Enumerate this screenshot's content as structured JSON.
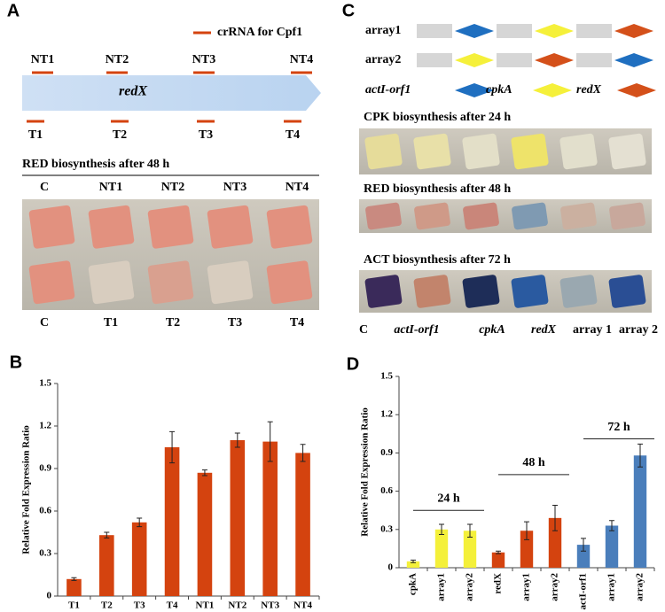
{
  "panel_a": {
    "label": "A",
    "legend": "crRNA for Cpf1",
    "nt_labels": [
      "NT1",
      "NT2",
      "NT3",
      "NT4"
    ],
    "gene": "redX",
    "t_labels": [
      "T1",
      "T2",
      "T3",
      "T4"
    ],
    "photo_title": "RED biosynthesis after 48 h",
    "top_labels": [
      "C",
      "NT1",
      "NT2",
      "NT3",
      "NT4"
    ],
    "bottom_labels": [
      "C",
      "T1",
      "T2",
      "T3",
      "T4"
    ]
  },
  "panel_c": {
    "label": "C",
    "arrays": [
      "array1",
      "array2"
    ],
    "legend": [
      "actI-orf1",
      "cpkA",
      "redX"
    ],
    "photo_titles": [
      "CPK biosynthesis after 24 h",
      "RED biosynthesis after 48 h",
      "ACT biosynthesis after 72 h"
    ],
    "bottom_labels": [
      "C",
      "actI-orf1",
      "cpkA",
      "redX",
      "array 1",
      "array 2"
    ]
  },
  "chart_data": [
    {
      "type": "bar",
      "panel_label": "B",
      "ylabel": "Relative Fold Expression Ratio",
      "categories": [
        "T1",
        "T2",
        "T3",
        "T4",
        "NT1",
        "NT2",
        "NT3",
        "NT4"
      ],
      "values": [
        0.12,
        0.43,
        0.52,
        1.05,
        0.87,
        1.1,
        1.09,
        1.01
      ],
      "errors": [
        0.01,
        0.02,
        0.03,
        0.11,
        0.02,
        0.05,
        0.14,
        0.06
      ],
      "colors": [
        "#d4430f",
        "#d4430f",
        "#d4430f",
        "#d4430f",
        "#d4430f",
        "#d4430f",
        "#d4430f",
        "#d4430f"
      ],
      "ylim": [
        0,
        1.5
      ],
      "yticks": [
        0,
        0.3,
        0.6,
        0.9,
        1.2,
        1.5
      ]
    },
    {
      "type": "bar",
      "panel_label": "D",
      "ylabel": "Relative Fold Expression Ratio",
      "categories": [
        "cpkA",
        "array1",
        "array2",
        "redX",
        "array1",
        "array2",
        "actI-orf1",
        "array1",
        "array2"
      ],
      "values": [
        0.05,
        0.3,
        0.29,
        0.12,
        0.29,
        0.39,
        0.18,
        0.33,
        0.88
      ],
      "errors": [
        0.01,
        0.04,
        0.05,
        0.01,
        0.07,
        0.1,
        0.05,
        0.04,
        0.09
      ],
      "colors": [
        "#f4f03a",
        "#f4f03a",
        "#f4f03a",
        "#d4430f",
        "#d4430f",
        "#d4430f",
        "#4a7ebb",
        "#4a7ebb",
        "#4a7ebb"
      ],
      "ylim": [
        0,
        1.5
      ],
      "yticks": [
        0,
        0.3,
        0.6,
        0.9,
        1.2,
        1.5
      ],
      "annotations": [
        "24 h",
        "48 h",
        "72 h"
      ]
    }
  ]
}
